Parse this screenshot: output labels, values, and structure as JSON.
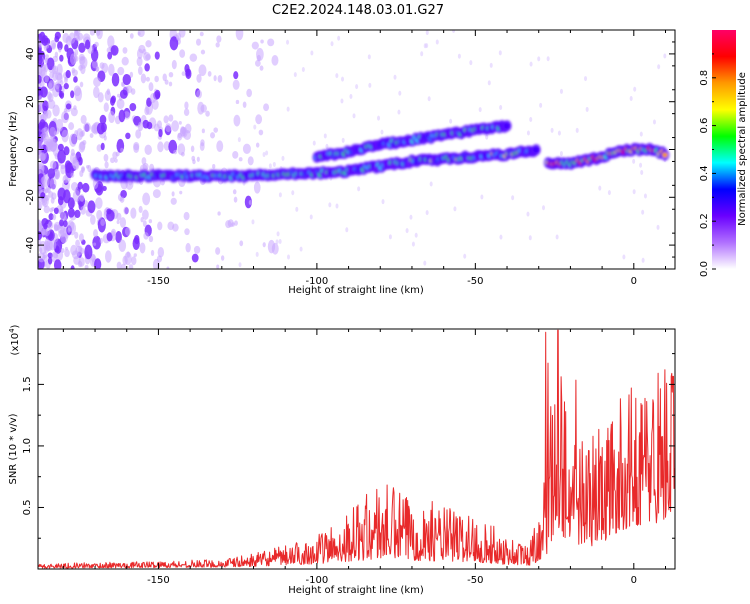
{
  "title": "C2E2.2024.148.03.01.G27",
  "chart_data": [
    {
      "type": "heatmap",
      "xlabel": "Height of straight line (km)",
      "ylabel": "Frequency (Hz)",
      "xlim": [
        -188,
        13
      ],
      "ylim": [
        -50,
        50
      ],
      "xticks": [
        -150,
        -100,
        -50,
        0
      ],
      "yticks": [
        -40,
        -20,
        0,
        20,
        40
      ],
      "colorbar": {
        "label": "Normalized spectral amplitude",
        "range": [
          0,
          1
        ],
        "ticks": [
          0.0,
          0.2,
          0.4,
          0.6,
          0.8
        ],
        "colors": [
          "#ffffff",
          "#b070ff",
          "#6a00ff",
          "#0000ff",
          "#00ffff",
          "#00ff00",
          "#ffff00",
          "#ff9900",
          "#ff0000",
          "#ff0066"
        ]
      },
      "tracks": [
        {
          "x": [
            -170,
            -160,
            -150,
            -140,
            -130,
            -120,
            -110,
            -100,
            -90,
            -80,
            -70,
            -60,
            -50,
            -40,
            -30
          ],
          "y": [
            -11,
            -11,
            -11,
            -11,
            -11,
            -11,
            -10,
            -10,
            -9,
            -7,
            -5,
            -4,
            -3,
            -2,
            0
          ]
        },
        {
          "x": [
            -100,
            -90,
            -80,
            -70,
            -60,
            -50,
            -45,
            -40
          ],
          "y": [
            -3,
            -1,
            2,
            4,
            6,
            8,
            9,
            10
          ]
        },
        {
          "x": [
            -27,
            -22,
            -16,
            -10,
            -5,
            0,
            5,
            10
          ],
          "y": [
            -6,
            -6,
            -5,
            -3,
            -1,
            0,
            0,
            -2
          ]
        }
      ]
    },
    {
      "type": "line",
      "xlabel": "Height of straight line (km)",
      "ylabel": "SNR (10 * v/v)",
      "yscale_label": "(x10",
      "yscale_exp": "4",
      "xlim": [
        -188,
        13
      ],
      "ylim": [
        0,
        1.95
      ],
      "xticks": [
        -150,
        -100,
        -50,
        0
      ],
      "yticks": [
        0.5,
        1.0,
        1.5
      ],
      "color": "#e8292a",
      "envelope": {
        "x": [
          -188,
          -160,
          -130,
          -120,
          -110,
          -100,
          -90,
          -80,
          -70,
          -60,
          -50,
          -40,
          -33,
          -28,
          -24,
          -20,
          -15,
          -10,
          -5,
          0,
          5,
          10,
          13
        ],
        "base": [
          0.02,
          0.03,
          0.04,
          0.06,
          0.09,
          0.12,
          0.18,
          0.22,
          0.2,
          0.18,
          0.16,
          0.1,
          0.08,
          0.25,
          0.9,
          0.55,
          0.5,
          0.6,
          0.85,
          1.0,
          1.05,
          1.1,
          1.2
        ],
        "amp": [
          0.02,
          0.02,
          0.03,
          0.05,
          0.08,
          0.12,
          0.25,
          0.45,
          0.35,
          0.3,
          0.25,
          0.15,
          0.1,
          0.5,
          1.0,
          0.6,
          0.5,
          0.45,
          0.3,
          0.25,
          0.3,
          0.4,
          0.3
        ]
      }
    }
  ]
}
